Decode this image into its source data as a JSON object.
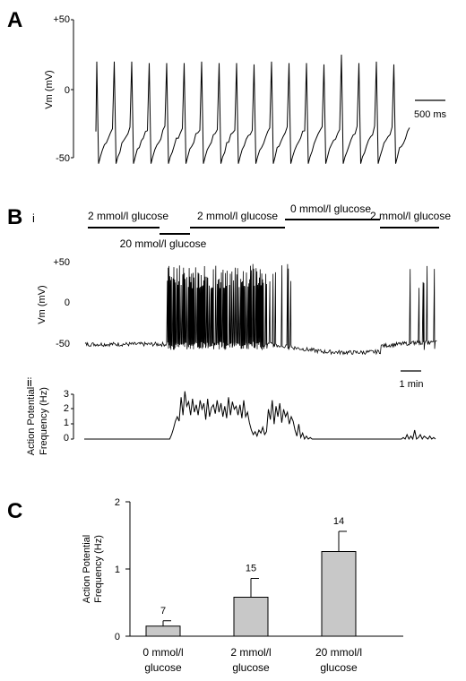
{
  "panels": {
    "a": {
      "label": "A"
    },
    "b": {
      "label": "B",
      "sub_i": "i",
      "sub_ii": "ii"
    },
    "c": {
      "label": "C"
    }
  },
  "conditions": [
    {
      "label": "2 mmol/l glucose",
      "row": "top"
    },
    {
      "label": "20 mmol/l glucose",
      "row": "bottom"
    },
    {
      "label": "2 mmol/l glucose",
      "row": "top"
    },
    {
      "label": "0 mmol/l glucose",
      "row": "top"
    },
    {
      "label": "2 mmol/l glucose",
      "row": "top"
    }
  ],
  "chart_data": [
    {
      "panel": "A",
      "type": "line",
      "ylabel": "Vm (mV)",
      "yticks": [
        "+50",
        "0",
        "-50"
      ],
      "ylim": [
        -55,
        50
      ],
      "scalebar": "500 ms",
      "spike_peak_mv": [
        20,
        20,
        20,
        19,
        19,
        19,
        20,
        19,
        19,
        18,
        20,
        19,
        19,
        18,
        25,
        19,
        20,
        18
      ],
      "resting_mv": -50
    },
    {
      "panel": "B i",
      "type": "line",
      "ylabel": "Vm (mV)",
      "yticks": [
        "+50",
        "0",
        "-50"
      ],
      "ylim": [
        -60,
        50
      ],
      "scalebar": "1 min"
    },
    {
      "panel": "B ii",
      "type": "line",
      "ylabel": "Action Potential Frequency (Hz)",
      "yticks": [
        "3",
        "2",
        "1",
        "0"
      ],
      "ylim": [
        0,
        3
      ],
      "frequency_hz": [
        0,
        0,
        0,
        0,
        0,
        0,
        0,
        0,
        0,
        0,
        0,
        0,
        0,
        0,
        0,
        0,
        0,
        0,
        0,
        0,
        0,
        0,
        0,
        0,
        0,
        0,
        0,
        0,
        0,
        0,
        0,
        0,
        0,
        0,
        0,
        0,
        0,
        0,
        0,
        0,
        0,
        0,
        0,
        0,
        0,
        0,
        0.3,
        0.7,
        1.2,
        1.5,
        1.2,
        2.8,
        1.6,
        3.2,
        2.2,
        2.5,
        1.6,
        2.7,
        1.8,
        2.3,
        1.6,
        2.6,
        2.0,
        2.4,
        1.3,
        2.7,
        1.5,
        2.1,
        2.3,
        1.7,
        2.6,
        1.8,
        2.4,
        1.5,
        2.2,
        1.4,
        2.8,
        1.6,
        2.5,
        2.0,
        2.2,
        1.6,
        2.3,
        1.4,
        2.6,
        1.5,
        1.8,
        1.1,
        0.6,
        0.3,
        0.5,
        0.2,
        0.6,
        0.4,
        0.8,
        0.3,
        0.5,
        2.0,
        1.3,
        2.6,
        1.0,
        2.2,
        1.5,
        2.4,
        1.1,
        2.0,
        1.5,
        1.8,
        1.0,
        1.5,
        1.2,
        0.6,
        0.2,
        1.0,
        0.1,
        0.4,
        0,
        0.2,
        0,
        0.1,
        0,
        0,
        0,
        0,
        0,
        0,
        0,
        0,
        0,
        0,
        0,
        0,
        0,
        0,
        0,
        0,
        0,
        0,
        0,
        0,
        0,
        0,
        0,
        0,
        0,
        0,
        0,
        0,
        0,
        0,
        0,
        0,
        0,
        0,
        0,
        0,
        0,
        0,
        0,
        0,
        0,
        0,
        0,
        0,
        0,
        0,
        0,
        0,
        0.1,
        0,
        0.3,
        0,
        0.2,
        0,
        0.6,
        0,
        0.1,
        0.3,
        0,
        0.2,
        0.1,
        0,
        0.2,
        0,
        0.1,
        0
      ]
    },
    {
      "panel": "C",
      "type": "bar",
      "ylabel": "Action Potential Frequency (Hz)",
      "yticks": [
        "2",
        "1",
        "0"
      ],
      "ylim": [
        0,
        2
      ],
      "categories": [
        "0 mmol/l glucose",
        "2 mmol/l glucose",
        "20 mmol/l glucose"
      ],
      "category_lines": [
        [
          "0 mmol/l",
          "glucose"
        ],
        [
          "2 mmol/l",
          "glucose"
        ],
        [
          "20 mmol/l",
          "glucose"
        ]
      ],
      "values": [
        0.15,
        0.58,
        1.26
      ],
      "errors": [
        0.08,
        0.28,
        0.3
      ],
      "n_labels": [
        "7",
        "15",
        "14"
      ],
      "bar_color": "#c8c8c8"
    }
  ]
}
